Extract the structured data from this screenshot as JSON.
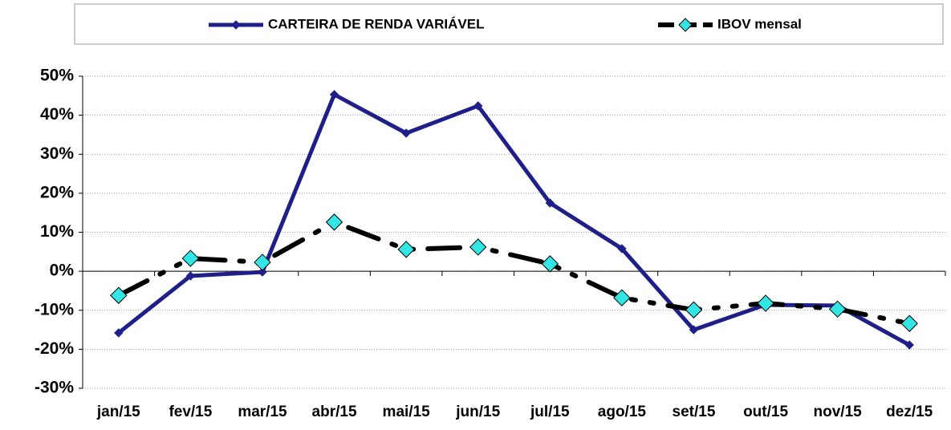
{
  "chart_data": {
    "type": "line",
    "categories": [
      "jan/15",
      "fev/15",
      "mar/15",
      "abr/15",
      "mai/15",
      "jun/15",
      "jul/15",
      "ago/15",
      "set/15",
      "out/15",
      "nov/15",
      "dez/15"
    ],
    "series": [
      {
        "name": "CARTEIRA DE RENDA VARIÁVEL",
        "color": "#1f1f8a",
        "values": [
          -15.8,
          -1.2,
          -0.2,
          45.3,
          35.4,
          42.4,
          17.5,
          5.8,
          -15,
          -8.6,
          -8.8,
          -18.9
        ]
      },
      {
        "name": "IBOV mensal",
        "color": "#000000",
        "marker_color": "#33e6e6",
        "values": [
          -6.2,
          3.3,
          2.3,
          12.6,
          5.6,
          6.2,
          1.9,
          -6.8,
          -9.9,
          -8.2,
          -9.7,
          -13.4
        ]
      }
    ],
    "ylim": [
      -30,
      50
    ],
    "yticks": [
      {
        "value": -30,
        "label": "-30%"
      },
      {
        "value": -20,
        "label": "-20%"
      },
      {
        "value": -10,
        "label": "-10%"
      },
      {
        "value": 0,
        "label": "0%"
      },
      {
        "value": 10,
        "label": "10%"
      },
      {
        "value": 20,
        "label": "20%"
      },
      {
        "value": 30,
        "label": "30%"
      },
      {
        "value": 40,
        "label": "40%"
      },
      {
        "value": 50,
        "label": "50%"
      }
    ],
    "grid": true,
    "legend": "top"
  }
}
